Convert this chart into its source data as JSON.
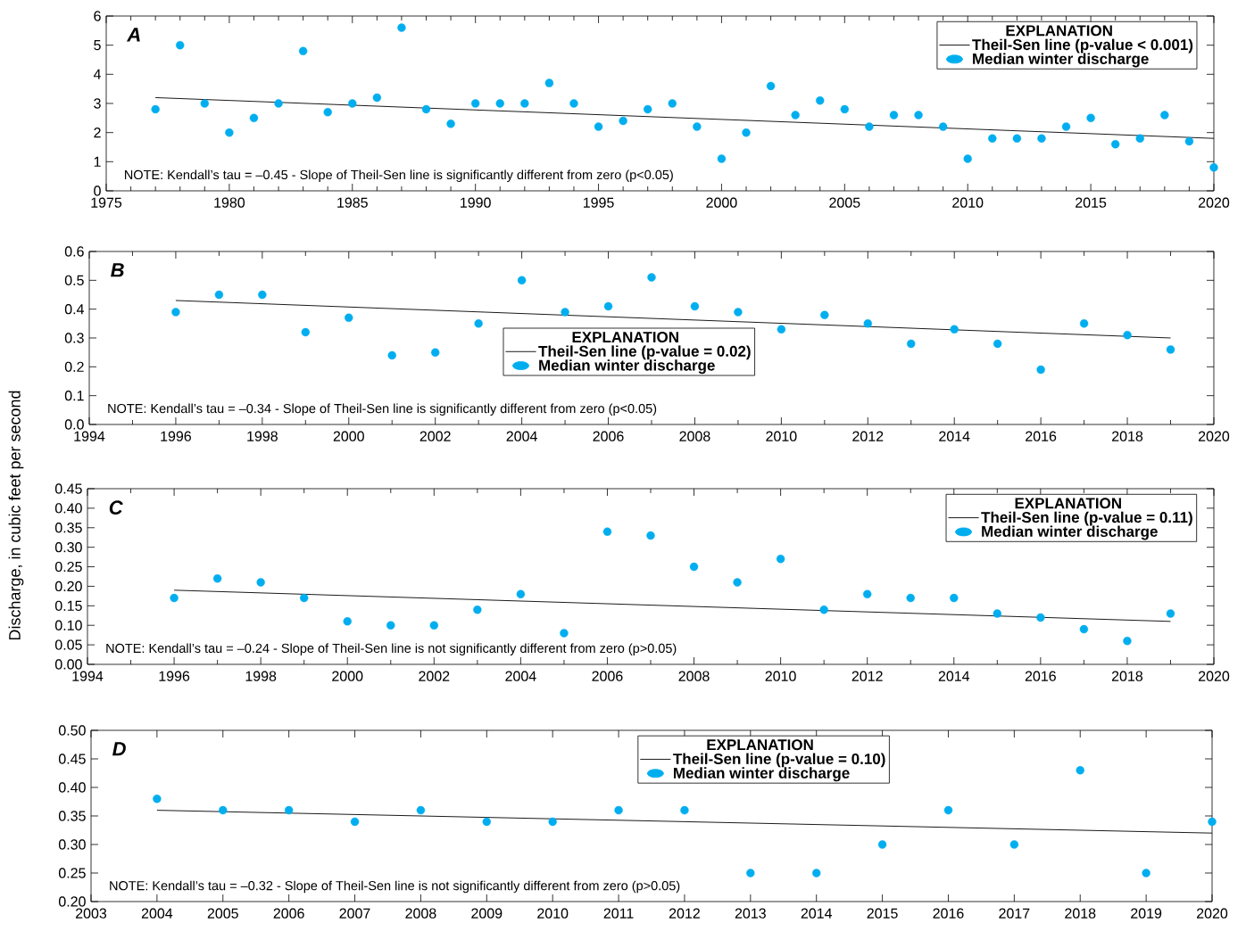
{
  "chart_data": [
    {
      "type": "scatter",
      "title": "A",
      "legend_title": "EXPLANATION",
      "legend": "top right",
      "x": [
        1977,
        1978,
        1979,
        1980,
        1981,
        1982,
        1983,
        1984,
        1985,
        1986,
        1987,
        1988,
        1989,
        1990,
        1991,
        1992,
        1993,
        1994,
        1995,
        1996,
        1997,
        1998,
        1999,
        2000,
        2001,
        2002,
        2003,
        2004,
        2005,
        2006,
        2007,
        2008,
        2009,
        2010,
        2011,
        2012,
        2013,
        2014,
        2015,
        2016,
        2017,
        2018,
        2019,
        2020
      ],
      "series": [
        {
          "name": "Theil-Sen line (p-value < 0.001)",
          "type": "line",
          "color": "#000000",
          "line_style": "solid",
          "marker": "none",
          "x": [
            1977,
            2020
          ],
          "values": [
            3.2,
            1.8
          ]
        },
        {
          "name": "Median winter discharge",
          "color": "#00aeef",
          "marker": "circle",
          "values": [
            2.8,
            5.0,
            3.0,
            2.0,
            2.5,
            3.0,
            4.8,
            2.7,
            3.0,
            3.2,
            5.6,
            2.8,
            2.3,
            3.0,
            3.0,
            3.0,
            3.7,
            3.0,
            2.2,
            2.4,
            2.8,
            3.0,
            2.2,
            1.1,
            2.0,
            3.6,
            2.6,
            3.1,
            2.8,
            2.2,
            2.6,
            2.6,
            2.2,
            1.1,
            1.8,
            1.8,
            1.8,
            2.2,
            2.5,
            1.6,
            1.8,
            2.6,
            1.7,
            0.8
          ]
        }
      ],
      "xlim": [
        1975,
        2020
      ],
      "xticks": [
        1975,
        1980,
        1985,
        1990,
        1995,
        2000,
        2005,
        2010,
        2015,
        2020
      ],
      "ylim": [
        0,
        6
      ],
      "yticks": [
        0,
        1,
        2,
        3,
        4,
        5,
        6
      ],
      "annotations": [
        "NOTE: Kendall’s tau = –0.45 - Slope of Theil-Sen line is significantly different from zero (p<0.05)"
      ]
    },
    {
      "type": "scatter",
      "title": "B",
      "legend_title": "EXPLANATION",
      "legend": "center",
      "x": [
        1996,
        1997,
        1998,
        1999,
        2000,
        2001,
        2002,
        2003,
        2004,
        2005,
        2006,
        2007,
        2008,
        2009,
        2010,
        2011,
        2012,
        2013,
        2014,
        2015,
        2016,
        2017,
        2018,
        2019
      ],
      "series": [
        {
          "name": "Theil-Sen line (p-value = 0.02)",
          "type": "line",
          "color": "#000000",
          "line_style": "solid",
          "marker": "none",
          "x": [
            1996,
            2019
          ],
          "values": [
            0.43,
            0.3
          ]
        },
        {
          "name": "Median winter discharge",
          "color": "#00aeef",
          "marker": "circle",
          "values": [
            0.39,
            0.45,
            0.45,
            0.32,
            0.37,
            0.24,
            0.25,
            0.35,
            0.5,
            0.39,
            0.41,
            0.51,
            0.41,
            0.39,
            0.33,
            0.38,
            0.35,
            0.28,
            0.33,
            0.28,
            0.19,
            0.35,
            0.31,
            0.26
          ]
        }
      ],
      "xlim": [
        1994,
        2020
      ],
      "xticks": [
        1994,
        1996,
        1998,
        2000,
        2002,
        2004,
        2006,
        2008,
        2010,
        2012,
        2014,
        2016,
        2018,
        2020
      ],
      "ylim": [
        0,
        0.6
      ],
      "yticks": [
        {
          "value": 0,
          "label": "0.0"
        },
        0.1,
        0.2,
        0.3,
        0.4,
        0.5,
        0.6
      ],
      "annotations": [
        "NOTE: Kendall’s tau = –0.34 - Slope of Theil-Sen line is significantly different from zero (p<0.05)"
      ]
    },
    {
      "type": "scatter",
      "title": "C",
      "ylabel": "Discharge, in cubic feet per second",
      "legend_title": "EXPLANATION",
      "legend": "top right",
      "x": [
        1996,
        1997,
        1998,
        1999,
        2000,
        2001,
        2002,
        2003,
        2004,
        2005,
        2006,
        2007,
        2008,
        2009,
        2010,
        2011,
        2012,
        2013,
        2014,
        2015,
        2016,
        2017,
        2018,
        2019
      ],
      "series": [
        {
          "name": "Theil-Sen line (p-value = 0.11)",
          "type": "line",
          "color": "#000000",
          "line_style": "solid",
          "marker": "none",
          "x": [
            1996,
            2019
          ],
          "values": [
            0.19,
            0.11
          ]
        },
        {
          "name": "Median winter discharge",
          "color": "#00aeef",
          "marker": "circle",
          "values": [
            0.17,
            0.22,
            0.21,
            0.17,
            0.11,
            0.1,
            0.1,
            0.14,
            0.18,
            0.08,
            0.34,
            0.33,
            0.25,
            0.21,
            0.27,
            0.14,
            0.18,
            0.17,
            0.17,
            0.13,
            0.12,
            0.09,
            0.06,
            0.13
          ]
        }
      ],
      "xlim": [
        1994,
        2020
      ],
      "xticks": [
        1994,
        1996,
        1998,
        2000,
        2002,
        2004,
        2006,
        2008,
        2010,
        2012,
        2014,
        2016,
        2018,
        2020
      ],
      "ylim": [
        0,
        0.45
      ],
      "yticks": [
        {
          "value": 0,
          "label": "0.00"
        },
        0.05,
        {
          "value": 0.1,
          "label": "0.10"
        },
        0.15,
        {
          "value": 0.2,
          "label": "0.20"
        },
        0.25,
        {
          "value": 0.3,
          "label": "0.30"
        },
        0.35,
        {
          "value": 0.4,
          "label": "0.40"
        },
        0.45
      ],
      "annotations": [
        "NOTE: Kendall’s tau = –0.24 - Slope of Theil-Sen line is not significantly different from zero (p>0.05)"
      ]
    },
    {
      "type": "scatter",
      "title": "D",
      "legend_title": "EXPLANATION",
      "legend": "top",
      "x": [
        2004,
        2005,
        2006,
        2007,
        2008,
        2009,
        2010,
        2011,
        2012,
        2013,
        2014,
        2015,
        2016,
        2017,
        2018,
        2019,
        2020
      ],
      "series": [
        {
          "name": "Theil-Sen line (p-value = 0.10)",
          "type": "line",
          "color": "#000000",
          "line_style": "solid",
          "marker": "none",
          "x": [
            2004,
            2020
          ],
          "values": [
            0.36,
            0.32
          ]
        },
        {
          "name": "Median winter discharge",
          "color": "#00aeef",
          "marker": "circle",
          "values": [
            0.38,
            0.36,
            0.36,
            0.34,
            0.36,
            0.34,
            0.34,
            0.36,
            0.36,
            0.25,
            0.25,
            0.3,
            0.36,
            0.3,
            0.43,
            0.25,
            0.34
          ]
        }
      ],
      "xlim": [
        2003,
        2020
      ],
      "xticks": [
        2003,
        2004,
        2005,
        2006,
        2007,
        2008,
        2009,
        2010,
        2011,
        2012,
        2013,
        2014,
        2015,
        2016,
        2017,
        2018,
        2019,
        2020
      ],
      "ylim": [
        0.2,
        0.5
      ],
      "yticks": [
        {
          "value": 0.2,
          "label": "0.20"
        },
        0.25,
        {
          "value": 0.3,
          "label": "0.30"
        },
        0.35,
        {
          "value": 0.4,
          "label": "0.40"
        },
        0.45,
        {
          "value": 0.5,
          "label": "0.50"
        }
      ],
      "annotations": [
        "NOTE: Kendall’s tau = –0.32 - Slope of Theil-Sen line is not significantly different from zero (p>0.05)"
      ]
    }
  ]
}
